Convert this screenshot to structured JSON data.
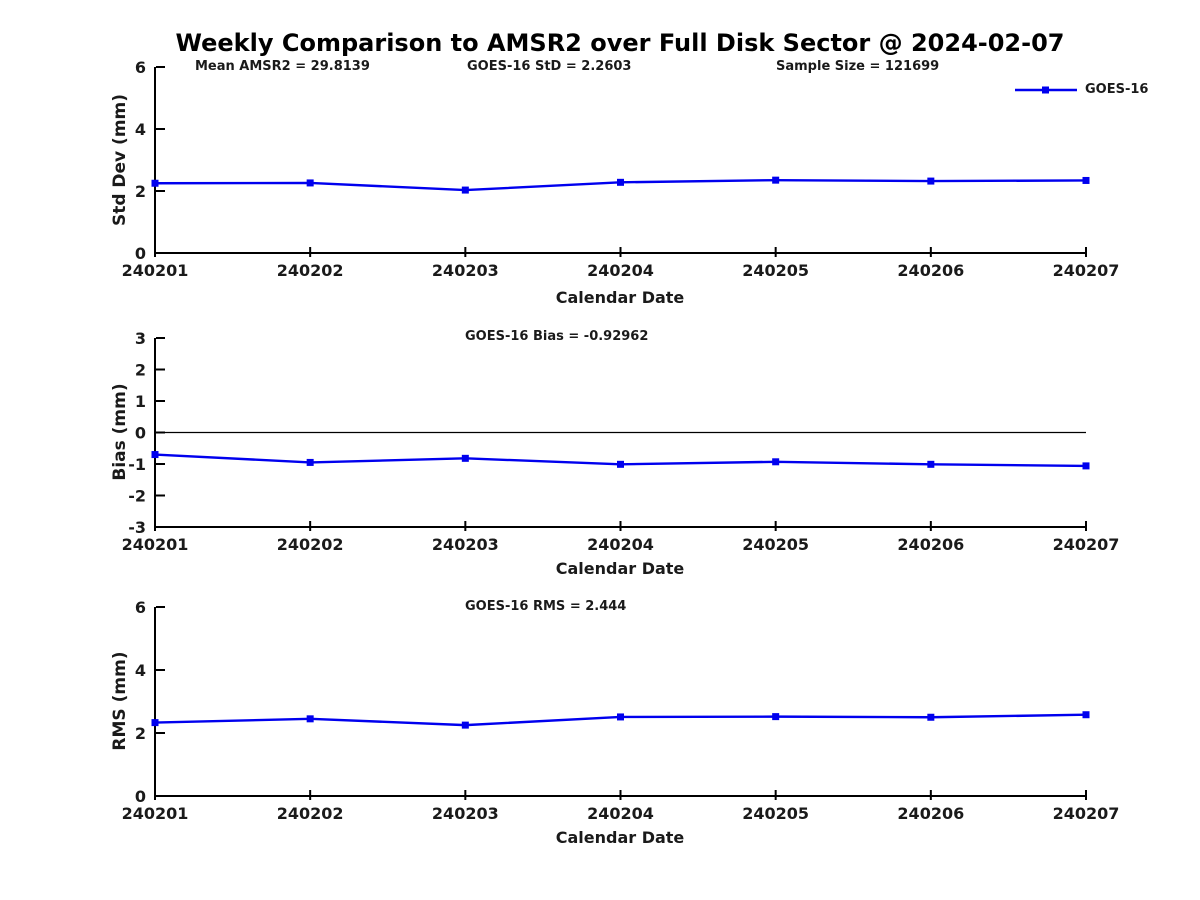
{
  "title": "Weekly Comparison to AMSR2 over Full Disk Sector @ 2024-02-07",
  "legend": {
    "label": "GOES-16"
  },
  "colors": {
    "line": "#0000ee",
    "axis": "#000000",
    "text": "#1a1a1a",
    "background": "#ffffff"
  },
  "chart_data": [
    {
      "type": "line",
      "title_annotations": [
        "Mean AMSR2 = 29.8139",
        "GOES-16 StD = 2.2603",
        "Sample Size = 121699"
      ],
      "categories": [
        "240201",
        "240202",
        "240203",
        "240204",
        "240205",
        "240206",
        "240207"
      ],
      "series": [
        {
          "name": "GOES-16",
          "marker": "square",
          "values": [
            2.25,
            2.26,
            2.03,
            2.28,
            2.35,
            2.32,
            2.34
          ]
        }
      ],
      "xlabel": "Calendar Date",
      "ylabel": "Std Dev (mm)",
      "ylim": [
        0,
        6
      ],
      "yticks": [
        0,
        2,
        4,
        6
      ],
      "zero_line": false,
      "grid": false,
      "legend_position": "upper-right-outside"
    },
    {
      "type": "line",
      "title_annotations": [
        "GOES-16 Bias  = -0.92962"
      ],
      "categories": [
        "240201",
        "240202",
        "240203",
        "240204",
        "240205",
        "240206",
        "240207"
      ],
      "series": [
        {
          "name": "GOES-16",
          "marker": "square",
          "values": [
            -0.7,
            -0.95,
            -0.82,
            -1.01,
            -0.93,
            -1.01,
            -1.06
          ]
        }
      ],
      "xlabel": "Calendar Date",
      "ylabel": "Bias (mm)",
      "ylim": [
        -3,
        3
      ],
      "yticks": [
        -3,
        -2,
        -1,
        0,
        1,
        2,
        3
      ],
      "zero_line": true,
      "grid": false
    },
    {
      "type": "line",
      "title_annotations": [
        "GOES-16 RMS = 2.444"
      ],
      "categories": [
        "240201",
        "240202",
        "240203",
        "240204",
        "240205",
        "240206",
        "240207"
      ],
      "series": [
        {
          "name": "GOES-16",
          "marker": "square",
          "values": [
            2.33,
            2.45,
            2.25,
            2.51,
            2.52,
            2.5,
            2.58
          ]
        }
      ],
      "xlabel": "Calendar Date",
      "ylabel": "RMS (mm)",
      "ylim": [
        0,
        6
      ],
      "yticks": [
        0,
        2,
        4,
        6
      ],
      "zero_line": false,
      "grid": false
    }
  ]
}
